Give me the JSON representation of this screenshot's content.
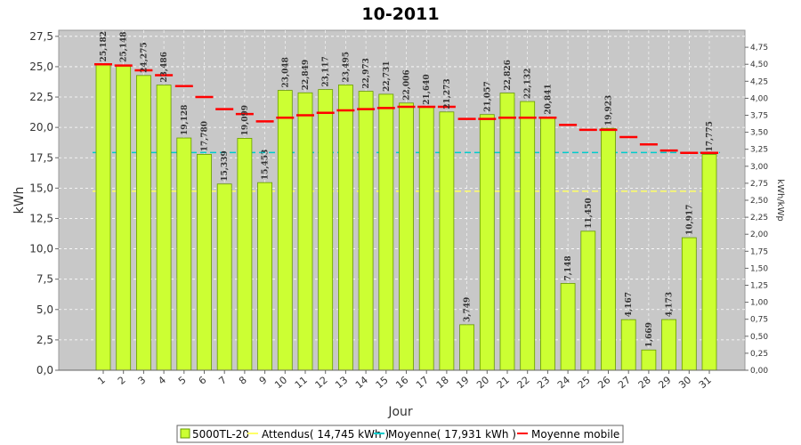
{
  "chart_data": {
    "type": "bar",
    "title": "10-2011",
    "xlabel": "Jour",
    "ylabel": "kWh",
    "y2label": "kWh/kWp",
    "categories": [
      "1",
      "2",
      "3",
      "4",
      "5",
      "6",
      "7",
      "8",
      "9",
      "10",
      "11",
      "12",
      "13",
      "14",
      "15",
      "16",
      "17",
      "18",
      "19",
      "20",
      "21",
      "22",
      "23",
      "24",
      "25",
      "26",
      "27",
      "28",
      "29",
      "30",
      "31"
    ],
    "series": [
      {
        "name": "5000TL-20",
        "type": "bar",
        "values": [
          25.182,
          25.148,
          24.275,
          23.486,
          19.128,
          17.78,
          15.339,
          19.099,
          15.453,
          23.048,
          22.849,
          23.117,
          23.495,
          22.973,
          22.731,
          22.006,
          21.64,
          21.273,
          3.749,
          21.057,
          22.826,
          22.132,
          20.841,
          7.148,
          11.45,
          19.923,
          4.167,
          1.669,
          4.173,
          10.917,
          17.775
        ],
        "labels": [
          "25,182",
          "25,148",
          "24,275",
          "23,486",
          "19,128",
          "17,780",
          "15,339",
          "19,099",
          "15,453",
          "23,048",
          "22,849",
          "23,117",
          "23,495",
          "22,973",
          "22,731",
          "22,006",
          "21,640",
          "21,273",
          "3,749",
          "21,057",
          "22,826",
          "22,132",
          "20,841",
          "7,148",
          "11,450",
          "19,923",
          "4,167",
          "1,669",
          "4,173",
          "10,917",
          "17,775"
        ]
      },
      {
        "name": "Moyenne mobile",
        "type": "step",
        "values": [
          25.2,
          25.1,
          24.7,
          24.3,
          23.4,
          22.5,
          21.5,
          21.1,
          20.5,
          20.8,
          21.0,
          21.2,
          21.4,
          21.5,
          21.6,
          21.7,
          21.7,
          21.7,
          20.7,
          20.7,
          20.8,
          20.8,
          20.8,
          20.2,
          19.8,
          19.8,
          19.2,
          18.6,
          18.1,
          17.9,
          17.9
        ]
      }
    ],
    "references": [
      {
        "name": "Attendus( 14,745 kWh )",
        "value": 14.745,
        "color": "#ffff66"
      },
      {
        "name": "Moyenne( 17,931 kWh )",
        "value": 17.931,
        "color": "#00cccc"
      }
    ],
    "legend": [
      {
        "label": "5000TL-20",
        "kind": "box",
        "color": "#ccff33"
      },
      {
        "label": "Attendus( 14,745 kWh )",
        "kind": "line",
        "color": "#ffff66"
      },
      {
        "label": "Moyenne( 17,931 kWh )",
        "kind": "line",
        "color": "#00cccc"
      },
      {
        "label": "Moyenne mobile",
        "kind": "line",
        "color": "#ff0000"
      }
    ],
    "legend_position": "bottom",
    "ylim": [
      0,
      28
    ],
    "yticks": [
      0,
      2.5,
      5,
      7.5,
      10,
      12.5,
      15,
      17.5,
      20,
      22.5,
      25,
      27.5
    ],
    "yticklabels": [
      "0,0",
      "2,5",
      "5,0",
      "7,5",
      "10,0",
      "12,5",
      "15,0",
      "17,5",
      "20,0",
      "22,5",
      "25,0",
      "27,5"
    ],
    "y2lim": [
      0,
      5.0
    ],
    "y2ticks": [
      0,
      0.25,
      0.5,
      0.75,
      1.0,
      1.25,
      1.5,
      1.75,
      2.0,
      2.25,
      2.5,
      2.75,
      3.0,
      3.25,
      3.5,
      3.75,
      4.0,
      4.25,
      4.5,
      4.75
    ],
    "y2ticklabels": [
      "0,00",
      "0,25",
      "0,50",
      "0,75",
      "1,00",
      "1,25",
      "1,50",
      "1,75",
      "2,00",
      "2,25",
      "2,50",
      "2,75",
      "3,00",
      "3,25",
      "3,50",
      "3,75",
      "4,00",
      "4,25",
      "4,50",
      "4,75"
    ],
    "grid": true,
    "colors": {
      "bar": "#ccff33",
      "bar_edge": "#669900",
      "plot_bg": "#c8c8c8",
      "moving_avg": "#ff0000"
    }
  }
}
